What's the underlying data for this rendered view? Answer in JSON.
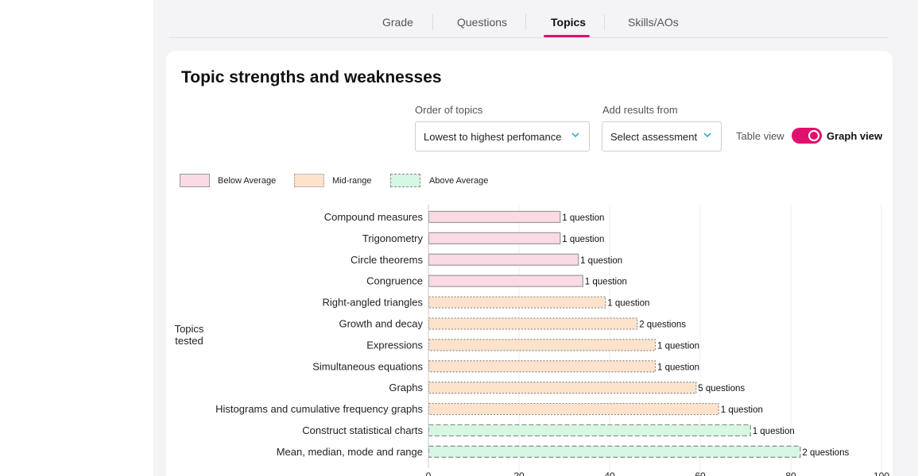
{
  "tabs": [
    {
      "label": "Grade",
      "active": false
    },
    {
      "label": "Questions",
      "active": false
    },
    {
      "label": "Topics",
      "active": true
    },
    {
      "label": "Skills/AOs",
      "active": false
    }
  ],
  "page_title": "Topic strengths and weaknesses",
  "order_of_topics": {
    "label": "Order of topics",
    "value": "Lowest to highest perfomance"
  },
  "add_results": {
    "label": "Add results from",
    "value": "Select assessment"
  },
  "view_toggle": {
    "left_label": "Table view",
    "right_label": "Graph view",
    "selected": "Graph view"
  },
  "legend": [
    {
      "label": "Below Average",
      "fill": "#fadbe3",
      "stroke": "#9a9a9a",
      "dash": "solid"
    },
    {
      "label": "Mid-range",
      "fill": "#fde3cc",
      "stroke": "#8a8a8a",
      "dash": "dotted"
    },
    {
      "label": "Above Average",
      "fill": "#d6f7e2",
      "stroke": "#8a8a8a",
      "dash": "dashed"
    }
  ],
  "chart_data": {
    "type": "bar",
    "orientation": "horizontal",
    "ylabel": "Topics tested",
    "xlim": [
      0,
      100
    ],
    "xticks": [
      0,
      20,
      40,
      60,
      80,
      100
    ],
    "categories": [
      "Compound measures",
      "Trigonometry",
      "Circle theorems",
      "Congruence",
      "Right-angled triangles",
      "Growth and decay",
      "Expressions",
      "Simultaneous equations",
      "Graphs",
      "Histograms and cumulative frequency graphs",
      "Construct statistical charts",
      "Mean, median, mode and range"
    ],
    "values": [
      29,
      29,
      33,
      34,
      39,
      46,
      50,
      50,
      59,
      64,
      71,
      82
    ],
    "bands": [
      "below",
      "below",
      "below",
      "below",
      "mid",
      "mid",
      "mid",
      "mid",
      "mid",
      "mid",
      "above",
      "above"
    ],
    "data_labels": [
      "1 question",
      "1 question",
      "1 question",
      "1 question",
      "1 question",
      "2 questions",
      "1 question",
      "1 question",
      "5 questions",
      "1 question",
      "1 question",
      "2 questions"
    ],
    "grid": true
  }
}
